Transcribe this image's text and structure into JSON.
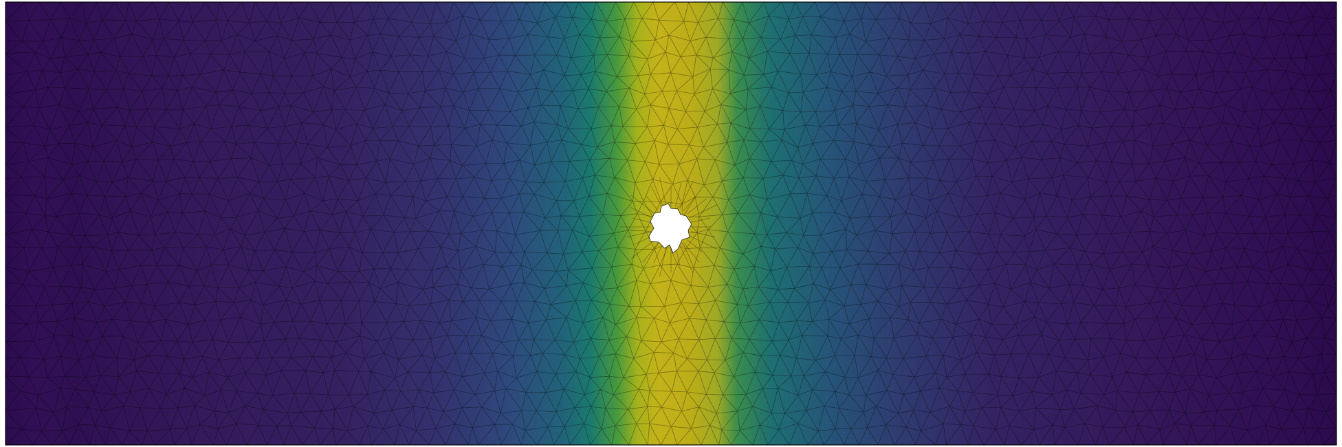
{
  "figure": {
    "kind": "triangular finite-element mesh colored by scalar field",
    "colormap": "viridis",
    "colormap_stops": [
      "#440154",
      "#3b528b",
      "#21918c",
      "#5ec962",
      "#bddf26"
    ],
    "mesh_edge_color": "#000000",
    "frame_color": "#000000",
    "hole_fill": "#ffffff",
    "field": {
      "shape": "vertical band of high values centered slightly right of domain center",
      "peak_color": "#c9b11a",
      "low_color": "#2d0f4e"
    },
    "hole": {
      "shape": "small irregular notched hole near domain center"
    }
  }
}
